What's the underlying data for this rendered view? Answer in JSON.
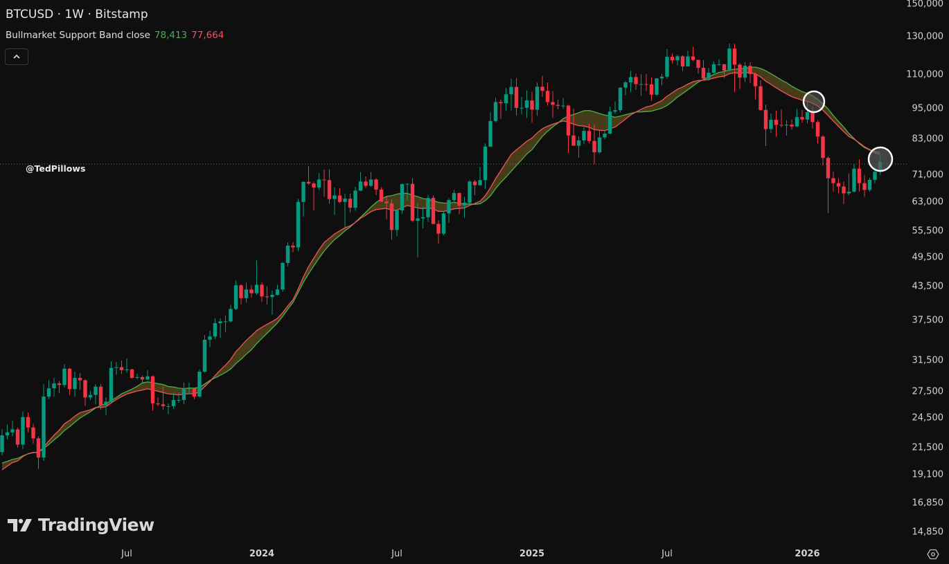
{
  "header": {
    "title": "BTCUSD · 1W · Bitstamp",
    "indicator_name": "Bullmarket Support Band close",
    "indicator_value_sma": "78,413",
    "indicator_value_ema": "77,664"
  },
  "watermark": "@TedPillows",
  "logo_text": "TradingView",
  "icons": {
    "collapse": "chevron-up-icon",
    "settings": "gear-icon"
  },
  "colors": {
    "background": "#0f0f0f",
    "up_candle": "#089981",
    "down_candle": "#f23645",
    "band_sma": "#4caf50",
    "band_ema": "#f7525f",
    "band_fill": "#6b5a1e"
  },
  "chart_data": {
    "type": "candlestick",
    "symbol": "BTCUSD",
    "interval": "1W",
    "y_scale": "log",
    "ylim": [
      14000,
      152000
    ],
    "y_ticks": [
      "150,000",
      "130,000",
      "110,000",
      "95,000",
      "83,000",
      "71,000",
      "63,000",
      "55,500",
      "49,500",
      "43,500",
      "37,500",
      "31,500",
      "27,500",
      "24,500",
      "21,500",
      "19,100",
      "16,850",
      "14,850"
    ],
    "x_ticks": [
      {
        "label": "Jul",
        "year": false
      },
      {
        "label": "2024",
        "year": true
      },
      {
        "label": "Jul",
        "year": false
      },
      {
        "label": "2025",
        "year": true
      },
      {
        "label": "Jul",
        "year": false
      },
      {
        "label": "2026",
        "year": true
      }
    ],
    "candles_ohlc": [
      [
        21100,
        23300,
        20800,
        22700
      ],
      [
        22700,
        23800,
        22300,
        23000
      ],
      [
        23000,
        24200,
        22600,
        23300
      ],
      [
        23300,
        23500,
        21500,
        21800
      ],
      [
        21800,
        25200,
        21400,
        24600
      ],
      [
        24600,
        25100,
        23000,
        23500
      ],
      [
        23500,
        23900,
        21900,
        22400
      ],
      [
        22400,
        22600,
        19600,
        20600
      ],
      [
        20600,
        28400,
        20300,
        26900
      ],
      [
        26900,
        28900,
        26600,
        27900
      ],
      [
        27900,
        29200,
        26900,
        28500
      ],
      [
        28500,
        28800,
        27300,
        28300
      ],
      [
        28300,
        31000,
        28000,
        30400
      ],
      [
        30400,
        30500,
        27100,
        27800
      ],
      [
        27800,
        30000,
        26900,
        29200
      ],
      [
        29200,
        29800,
        27700,
        28900
      ],
      [
        28900,
        29000,
        25800,
        26800
      ],
      [
        26800,
        27600,
        26500,
        27100
      ],
      [
        27100,
        28400,
        26000,
        28100
      ],
      [
        28100,
        28400,
        25400,
        25900
      ],
      [
        25900,
        26800,
        24800,
        26300
      ],
      [
        26300,
        31400,
        26200,
        30500
      ],
      [
        30500,
        31300,
        29600,
        30600
      ],
      [
        30600,
        31500,
        29700,
        30200
      ],
      [
        30200,
        31800,
        29900,
        30300
      ],
      [
        30300,
        30400,
        29100,
        29200
      ],
      [
        29200,
        29700,
        29000,
        29300
      ],
      [
        29300,
        29500,
        28600,
        29000
      ],
      [
        29000,
        30200,
        28900,
        29400
      ],
      [
        29400,
        29500,
        25300,
        26100
      ],
      [
        26100,
        26800,
        25800,
        26000
      ],
      [
        26000,
        28100,
        25400,
        25800
      ],
      [
        25800,
        26100,
        24900,
        25800
      ],
      [
        25800,
        27400,
        25500,
        26500
      ],
      [
        26500,
        27400,
        26200,
        26500
      ],
      [
        26500,
        28600,
        26000,
        27900
      ],
      [
        27900,
        28600,
        27200,
        27900
      ],
      [
        27900,
        27900,
        26600,
        26900
      ],
      [
        26900,
        30300,
        26800,
        30000
      ],
      [
        30000,
        35200,
        29900,
        34500
      ],
      [
        34500,
        35900,
        33400,
        35000
      ],
      [
        35000,
        37900,
        34600,
        37100
      ],
      [
        37100,
        37900,
        34800,
        37400
      ],
      [
        37400,
        38400,
        35700,
        37400
      ],
      [
        37400,
        40200,
        37200,
        39500
      ],
      [
        39500,
        44700,
        39300,
        43800
      ],
      [
        43800,
        44000,
        40300,
        41400
      ],
      [
        41400,
        44300,
        40600,
        43000
      ],
      [
        43000,
        43800,
        41500,
        42300
      ],
      [
        42300,
        48900,
        42000,
        43900
      ],
      [
        43900,
        44400,
        40700,
        41700
      ],
      [
        41700,
        43600,
        40300,
        41600
      ],
      [
        41600,
        42800,
        38500,
        42000
      ],
      [
        42000,
        43900,
        41900,
        43000
      ],
      [
        43000,
        48500,
        42600,
        48300
      ],
      [
        48300,
        52800,
        47600,
        52100
      ],
      [
        52100,
        52900,
        50600,
        51700
      ],
      [
        51700,
        64000,
        50900,
        63100
      ],
      [
        63100,
        69000,
        59200,
        68900
      ],
      [
        68900,
        73800,
        68000,
        68400
      ],
      [
        68400,
        68900,
        60800,
        67200
      ],
      [
        67200,
        71600,
        66500,
        69600
      ],
      [
        69600,
        72700,
        64500,
        69400
      ],
      [
        69400,
        72800,
        62600,
        63900
      ],
      [
        63900,
        67200,
        59600,
        64900
      ],
      [
        64900,
        67000,
        62800,
        63100
      ],
      [
        63100,
        65400,
        56500,
        64000
      ],
      [
        64000,
        65400,
        60200,
        61500
      ],
      [
        61500,
        67400,
        60700,
        66300
      ],
      [
        66300,
        71900,
        66100,
        69000
      ],
      [
        69000,
        70600,
        67100,
        67700
      ],
      [
        67700,
        71900,
        67400,
        69600
      ],
      [
        69600,
        70000,
        65000,
        66600
      ],
      [
        66600,
        67300,
        63000,
        63200
      ],
      [
        63200,
        64500,
        58500,
        62700
      ],
      [
        62700,
        63800,
        53500,
        55800
      ],
      [
        55800,
        61000,
        54300,
        60800
      ],
      [
        60800,
        68400,
        59900,
        68200
      ],
      [
        68200,
        68500,
        63500,
        68300
      ],
      [
        68300,
        70000,
        57800,
        58100
      ],
      [
        58100,
        62700,
        49500,
        58700
      ],
      [
        58700,
        61800,
        56200,
        59000
      ],
      [
        59000,
        65000,
        57800,
        64200
      ],
      [
        64200,
        64900,
        57200,
        57300
      ],
      [
        57300,
        58200,
        52600,
        54900
      ],
      [
        54900,
        60600,
        54500,
        60000
      ],
      [
        60000,
        64100,
        57600,
        63600
      ],
      [
        63600,
        66500,
        62700,
        65600
      ],
      [
        65600,
        65700,
        59800,
        62100
      ],
      [
        62100,
        64500,
        58900,
        62900
      ],
      [
        62900,
        69400,
        62000,
        69000
      ],
      [
        69000,
        69500,
        65000,
        67900
      ],
      [
        67900,
        73600,
        67700,
        69400
      ],
      [
        69400,
        81500,
        66800,
        80400
      ],
      [
        80400,
        93400,
        80200,
        89900
      ],
      [
        89900,
        99600,
        89400,
        97700
      ],
      [
        97700,
        98800,
        90800,
        97200
      ],
      [
        97200,
        103900,
        94200,
        101100
      ],
      [
        101100,
        108300,
        94200,
        104400
      ],
      [
        104400,
        108400,
        92200,
        95200
      ],
      [
        95200,
        99900,
        92600,
        95300
      ],
      [
        95300,
        102700,
        91200,
        98400
      ],
      [
        98400,
        102200,
        89300,
        94500
      ],
      [
        94500,
        106400,
        92000,
        104500
      ],
      [
        104500,
        109600,
        100000,
        102600
      ],
      [
        102600,
        106500,
        96200,
        97700
      ],
      [
        97700,
        102500,
        91200,
        96500
      ],
      [
        96500,
        98800,
        94700,
        96100
      ],
      [
        96100,
        99500,
        94900,
        96200
      ],
      [
        96200,
        96500,
        78200,
        84400
      ],
      [
        84400,
        95000,
        80700,
        80700
      ],
      [
        80700,
        84100,
        76600,
        82600
      ],
      [
        82600,
        87500,
        81200,
        86100
      ],
      [
        86100,
        88800,
        81600,
        82400
      ],
      [
        82400,
        88500,
        74400,
        78400
      ],
      [
        78400,
        86100,
        78000,
        83700
      ],
      [
        83700,
        86400,
        83000,
        85100
      ],
      [
        85100,
        95700,
        84800,
        93700
      ],
      [
        93700,
        97900,
        92800,
        94300
      ],
      [
        94300,
        104200,
        93400,
        104100
      ],
      [
        104100,
        107100,
        100700,
        106500
      ],
      [
        106500,
        112000,
        102000,
        109000
      ],
      [
        109000,
        110700,
        103100,
        105700
      ],
      [
        105700,
        110500,
        100400,
        105700
      ],
      [
        105700,
        110500,
        102600,
        105600
      ],
      [
        105600,
        108900,
        98200,
        100900
      ],
      [
        100900,
        108500,
        100400,
        108400
      ],
      [
        108400,
        110500,
        105100,
        109200
      ],
      [
        109200,
        123200,
        108300,
        119100
      ],
      [
        119100,
        120900,
        115700,
        117300
      ],
      [
        117300,
        120200,
        114700,
        119400
      ],
      [
        119400,
        119900,
        112000,
        114200
      ],
      [
        114200,
        122300,
        114100,
        119300
      ],
      [
        119300,
        124500,
        116800,
        117500
      ],
      [
        117500,
        117600,
        110700,
        113500
      ],
      [
        113500,
        117400,
        107300,
        108300
      ],
      [
        108300,
        113400,
        107300,
        111100
      ],
      [
        111100,
        116800,
        110600,
        115300
      ],
      [
        115300,
        117900,
        114500,
        115300
      ],
      [
        115300,
        115400,
        108600,
        112100
      ],
      [
        112100,
        126200,
        111800,
        123500
      ],
      [
        123500,
        126100,
        102000,
        115100
      ],
      [
        115100,
        115900,
        103500,
        108700
      ],
      [
        108700,
        116400,
        106700,
        114500
      ],
      [
        114500,
        116400,
        106300,
        110500
      ],
      [
        110500,
        111200,
        98900,
        104700
      ],
      [
        104700,
        107500,
        94000,
        94400
      ],
      [
        94400,
        96600,
        80600,
        86800
      ],
      [
        86800,
        92900,
        85300,
        90400
      ],
      [
        90400,
        94100,
        83900,
        88400
      ],
      [
        88400,
        94600,
        87500,
        88200
      ],
      [
        88200,
        90300,
        84400,
        88500
      ],
      [
        88500,
        90500,
        86600,
        87800
      ],
      [
        87800,
        94800,
        87500,
        91500
      ],
      [
        91500,
        94500,
        89300,
        90500
      ],
      [
        90500,
        97900,
        89000,
        93500
      ],
      [
        93500,
        95500,
        87000,
        89500
      ],
      [
        89500,
        90200,
        81500,
        84000
      ],
      [
        84000,
        84500,
        74000,
        76500
      ],
      [
        76500,
        77000,
        60000,
        70000
      ],
      [
        70000,
        72000,
        66000,
        68500
      ],
      [
        68500,
        70000,
        65500,
        67500
      ],
      [
        67500,
        69000,
        62500,
        65500
      ],
      [
        65500,
        71500,
        65000,
        66000
      ],
      [
        66000,
        74500,
        65800,
        73000
      ],
      [
        73000,
        76000,
        66000,
        68500
      ],
      [
        68500,
        71000,
        64500,
        66500
      ],
      [
        66500,
        70200,
        66000,
        69500
      ],
      [
        69500,
        73500,
        68500,
        72000
      ],
      [
        72000,
        77500,
        71000,
        75200
      ]
    ]
  }
}
